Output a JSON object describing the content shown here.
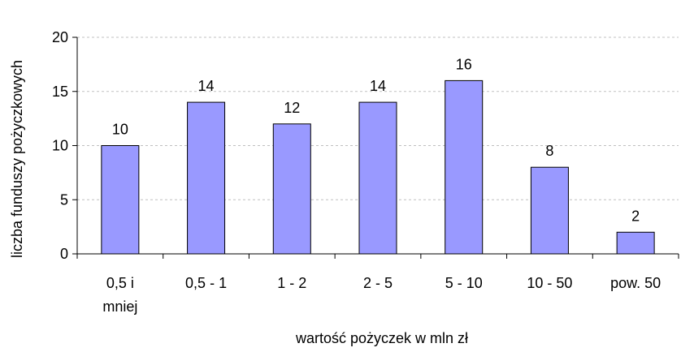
{
  "chart_data": {
    "type": "bar",
    "title": "",
    "categories": [
      "0,5 i mniej",
      "0,5 - 1",
      "1 - 2",
      "2 - 5",
      "5 - 10",
      "10 - 50",
      "pow. 50"
    ],
    "category_lines": [
      [
        "0,5 i",
        "mniej"
      ],
      [
        "0,5 - 1"
      ],
      [
        "1 - 2"
      ],
      [
        "2 - 5"
      ],
      [
        "5 - 10"
      ],
      [
        "10 - 50"
      ],
      [
        "pow. 50"
      ]
    ],
    "values": [
      10,
      14,
      12,
      14,
      16,
      8,
      2
    ],
    "data_labels": [
      "10",
      "14",
      "12",
      "14",
      "16",
      "8",
      "2"
    ],
    "xlabel": "wartość pożyczek w mln zł",
    "ylabel": "liczba funduszy pożyczkowych",
    "ylim": [
      0,
      20
    ],
    "yticks": [
      0,
      5,
      10,
      15,
      20
    ],
    "grid": true,
    "legend": "none",
    "colors": {
      "bar_fill": "#9999ff",
      "bar_stroke": "#000000",
      "grid": "#c0c0c0",
      "axis": "#000000"
    }
  }
}
